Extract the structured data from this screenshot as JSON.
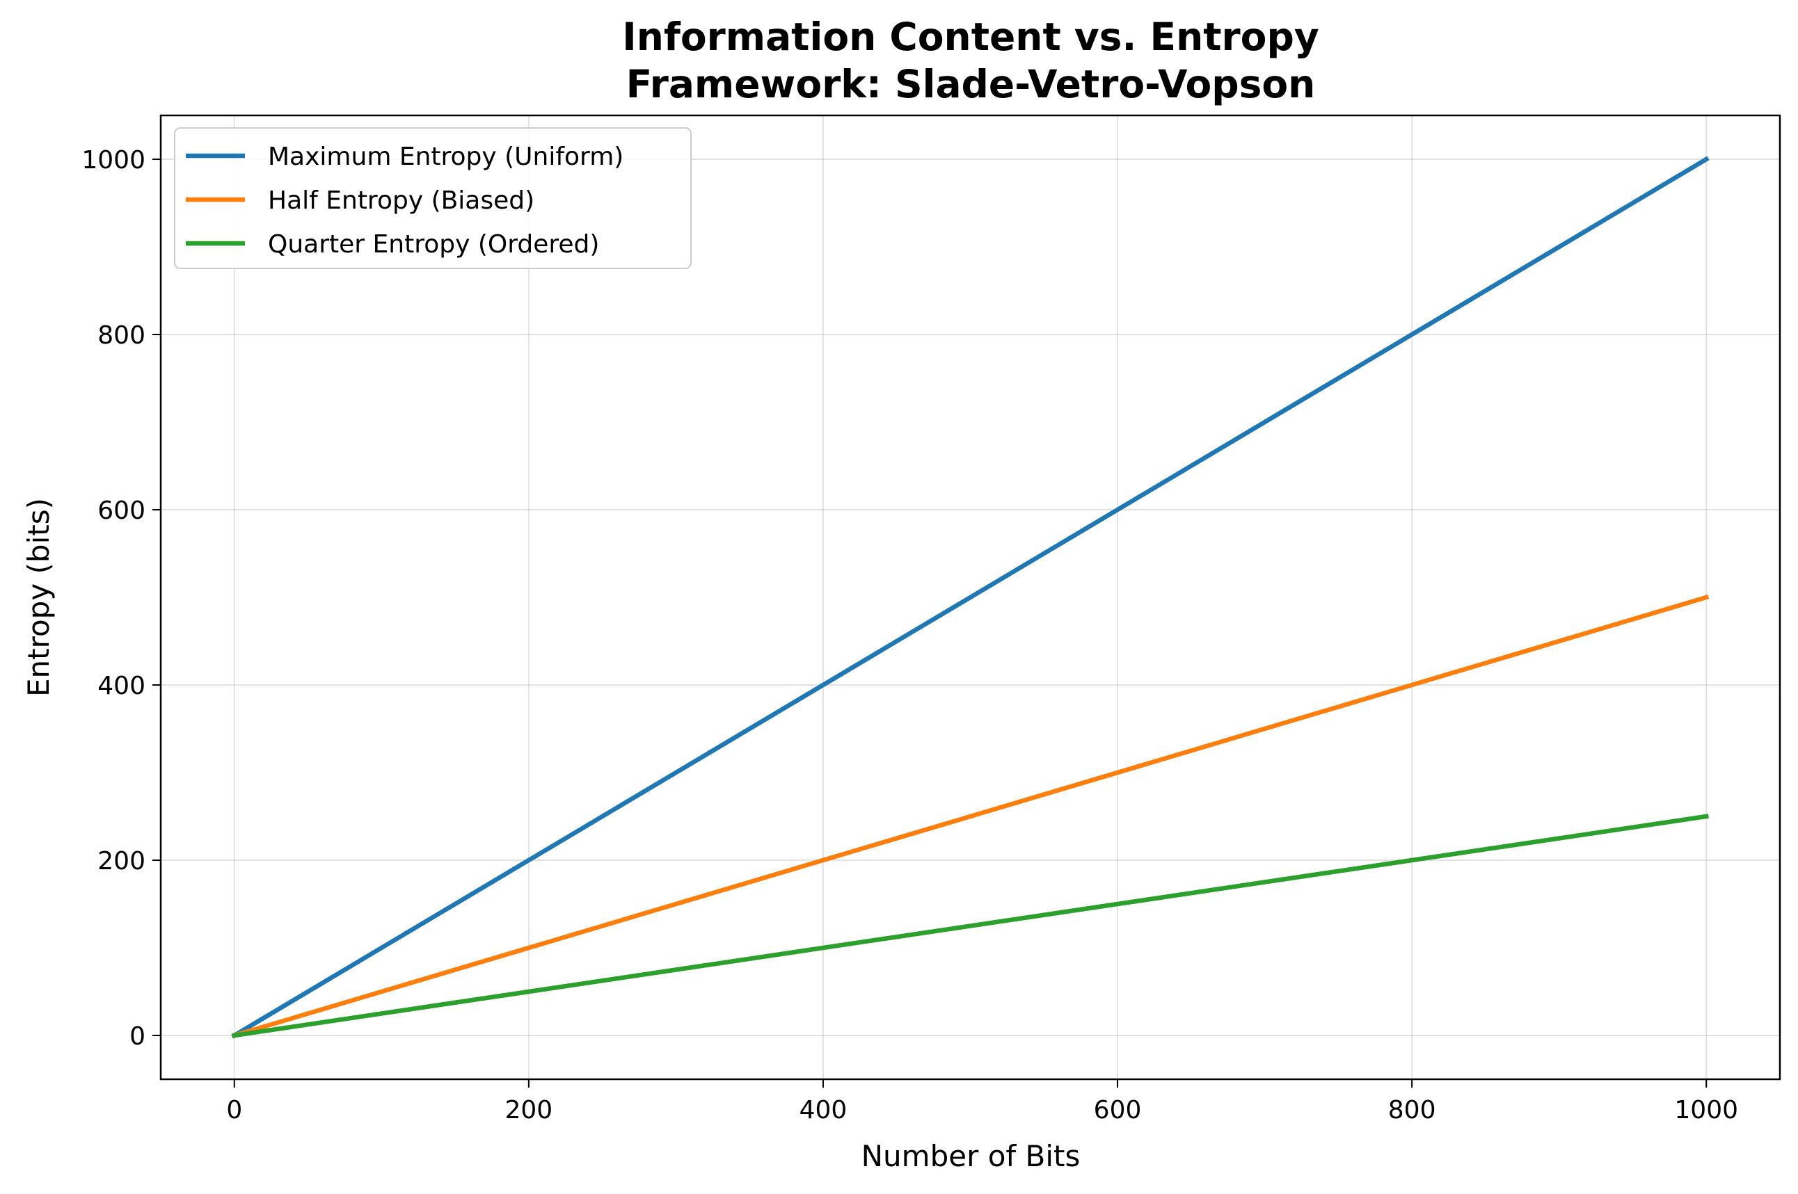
{
  "chart_data": {
    "type": "line",
    "title": "Information Content vs. Entropy",
    "subtitle": "Framework: Slade-Vetro-Vopson",
    "xlabel": "Number of Bits",
    "ylabel": "Entropy (bits)",
    "xlim": [
      -50,
      1050
    ],
    "ylim": [
      -50,
      1050
    ],
    "x_ticks": [
      0,
      200,
      400,
      600,
      800,
      1000
    ],
    "y_ticks": [
      0,
      200,
      400,
      600,
      800,
      1000
    ],
    "x_tick_labels": [
      "0",
      "200",
      "400",
      "600",
      "800",
      "1000"
    ],
    "y_tick_labels": [
      "0",
      "200",
      "400",
      "600",
      "800",
      "1000"
    ],
    "grid": true,
    "legend_position": "top-left",
    "x": [
      0,
      1000
    ],
    "series": [
      {
        "name": "Maximum Entropy (Uniform)",
        "color": "#1f77b4",
        "values": [
          0,
          1000
        ]
      },
      {
        "name": "Half Entropy (Biased)",
        "color": "#ff7f0e",
        "values": [
          0,
          500
        ]
      },
      {
        "name": "Quarter Entropy (Ordered)",
        "color": "#2ca02c",
        "values": [
          0,
          250
        ]
      }
    ]
  }
}
